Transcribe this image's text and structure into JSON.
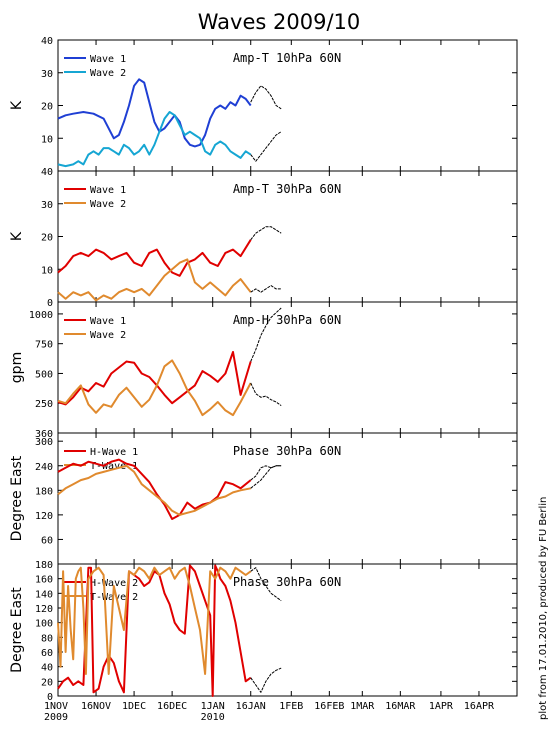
{
  "title": "Waves 2009/10",
  "credit": "plot from 17.01.2010, produced by FU Berlin",
  "colors": {
    "dark_blue": "#1f3fd4",
    "light_blue": "#16a6d3",
    "red": "#e00000",
    "orange": "#e08a2e",
    "forecast": "#000000"
  },
  "x_axis": {
    "ticks": [
      {
        "day": 0,
        "label": "1NOV",
        "sub": "2009"
      },
      {
        "day": 15,
        "label": "16NOV",
        "sub": ""
      },
      {
        "day": 30,
        "label": "1DEC",
        "sub": ""
      },
      {
        "day": 45,
        "label": "16DEC",
        "sub": ""
      },
      {
        "day": 61,
        "label": "1JAN",
        "sub": "2010"
      },
      {
        "day": 76,
        "label": "16JAN",
        "sub": ""
      },
      {
        "day": 92,
        "label": "1FEB",
        "sub": ""
      },
      {
        "day": 107,
        "label": "16FEB",
        "sub": ""
      },
      {
        "day": 120,
        "label": "1MAR",
        "sub": ""
      },
      {
        "day": 135,
        "label": "16MAR",
        "sub": ""
      },
      {
        "day": 151,
        "label": "1APR",
        "sub": ""
      },
      {
        "day": 166,
        "label": "16APR",
        "sub": ""
      }
    ],
    "range": [
      0,
      181
    ]
  },
  "chart_data": [
    {
      "type": "line",
      "title": "Amp-T 10hPa 60N",
      "ylabel": "K",
      "ylim": [
        0,
        40
      ],
      "yticks": [
        10,
        20,
        30,
        40
      ],
      "ytick_labels": [
        "10",
        "20",
        "30",
        "40"
      ],
      "bottom_label": "40",
      "legend": [
        {
          "name": "Wave 1",
          "color": "#1f3fd4"
        },
        {
          "name": "Wave 2",
          "color": "#16a6d3"
        }
      ],
      "series": [
        {
          "name": "Wave 1",
          "color": "#1f3fd4",
          "x": [
            0,
            3,
            6,
            10,
            14,
            18,
            20,
            22,
            24,
            26,
            28,
            30,
            32,
            34,
            36,
            38,
            40,
            42,
            44,
            46,
            48,
            50,
            52,
            54,
            56,
            58,
            60,
            62,
            64,
            66,
            68,
            70,
            72,
            74,
            76
          ],
          "values": [
            16,
            17,
            17.5,
            18,
            17.5,
            16,
            13,
            10,
            11,
            15,
            20,
            26,
            28,
            27,
            21,
            15,
            12,
            13,
            15,
            17,
            15,
            10,
            8,
            7.5,
            8,
            11,
            16,
            19,
            20,
            19,
            21,
            20,
            23,
            22,
            20
          ]
        },
        {
          "name": "Wave 2",
          "color": "#16a6d3",
          "x": [
            0,
            3,
            6,
            8,
            10,
            12,
            14,
            16,
            18,
            20,
            22,
            24,
            26,
            28,
            30,
            32,
            34,
            36,
            38,
            40,
            42,
            44,
            46,
            48,
            50,
            52,
            54,
            56,
            58,
            60,
            62,
            64,
            66,
            68,
            70,
            72,
            74,
            76
          ],
          "values": [
            2,
            1.5,
            2,
            3,
            2,
            5,
            6,
            5,
            7,
            7,
            6,
            5,
            8,
            7,
            5,
            6,
            8,
            5,
            8,
            12,
            16,
            18,
            17,
            14,
            11,
            12,
            11,
            10,
            6,
            5,
            8,
            9,
            8,
            6,
            5,
            4,
            6,
            5
          ]
        },
        {
          "name": "",
          "color": "#000000",
          "dash": true,
          "x": [
            76,
            78,
            80,
            82,
            84,
            86,
            88
          ],
          "values": [
            21,
            24,
            26,
            25,
            23,
            20,
            19
          ]
        },
        {
          "name": "",
          "color": "#000000",
          "dash": true,
          "x": [
            76,
            78,
            80,
            82,
            84,
            86,
            88
          ],
          "values": [
            5,
            3,
            5,
            7,
            9,
            11,
            12
          ]
        }
      ]
    },
    {
      "type": "line",
      "title": "Amp-T 30hPa 60N",
      "ylabel": "K",
      "ylim": [
        0,
        40
      ],
      "yticks": [
        0,
        10,
        20,
        30
      ],
      "ytick_labels": [
        "0",
        "10",
        "20",
        "30"
      ],
      "legend": [
        {
          "name": "Wave 1",
          "color": "#e00000"
        },
        {
          "name": "Wave 2",
          "color": "#e08a2e"
        }
      ],
      "series": [
        {
          "name": "Wave 1",
          "color": "#e00000",
          "x": [
            0,
            3,
            6,
            9,
            12,
            15,
            18,
            21,
            24,
            27,
            30,
            33,
            36,
            39,
            42,
            45,
            48,
            51,
            54,
            57,
            60,
            63,
            66,
            69,
            72,
            76
          ],
          "values": [
            9,
            11,
            14,
            15,
            14,
            16,
            15,
            13,
            14,
            15,
            12,
            11,
            15,
            16,
            12,
            9,
            8,
            12,
            13,
            15,
            12,
            11,
            15,
            16,
            14,
            19
          ]
        },
        {
          "name": "Wave 2",
          "color": "#e08a2e",
          "x": [
            0,
            3,
            6,
            9,
            12,
            15,
            18,
            21,
            24,
            27,
            30,
            33,
            36,
            39,
            42,
            45,
            48,
            51,
            54,
            57,
            60,
            63,
            66,
            69,
            72,
            76
          ],
          "values": [
            3,
            1,
            3,
            2,
            3,
            0.5,
            2,
            1,
            3,
            4,
            3,
            4,
            2,
            5,
            8,
            10,
            12,
            13,
            6,
            4,
            6,
            4,
            2,
            5,
            7,
            3
          ]
        },
        {
          "name": "",
          "color": "#000000",
          "dash": true,
          "x": [
            76,
            78,
            80,
            82,
            84,
            86,
            88
          ],
          "values": [
            19,
            21,
            22,
            23,
            23,
            22,
            21
          ]
        },
        {
          "name": "",
          "color": "#000000",
          "dash": true,
          "x": [
            76,
            78,
            80,
            82,
            84,
            86,
            88
          ],
          "values": [
            3,
            4,
            3,
            4,
            5,
            4,
            4
          ]
        }
      ]
    },
    {
      "type": "line",
      "title": "Amp-H 30hPa 60N",
      "ylabel": "gpm",
      "ylim": [
        0,
        1100
      ],
      "yticks": [
        250,
        500,
        750,
        1000
      ],
      "ytick_labels": [
        "250",
        "500",
        "750",
        "1000"
      ],
      "bottom_label": "360",
      "legend": [
        {
          "name": "Wave 1",
          "color": "#e00000"
        },
        {
          "name": "Wave 2",
          "color": "#e08a2e"
        }
      ],
      "series": [
        {
          "name": "Wave 1",
          "color": "#e00000",
          "x": [
            0,
            3,
            6,
            9,
            12,
            15,
            18,
            21,
            24,
            27,
            30,
            33,
            36,
            39,
            42,
            45,
            48,
            51,
            54,
            57,
            60,
            63,
            66,
            69,
            72,
            76
          ],
          "values": [
            260,
            240,
            300,
            380,
            350,
            420,
            390,
            500,
            550,
            600,
            590,
            500,
            470,
            400,
            320,
            250,
            300,
            350,
            400,
            520,
            480,
            430,
            500,
            680,
            320,
            600
          ]
        },
        {
          "name": "Wave 2",
          "color": "#e08a2e",
          "x": [
            0,
            3,
            6,
            9,
            12,
            15,
            18,
            21,
            24,
            27,
            30,
            33,
            36,
            39,
            42,
            45,
            48,
            51,
            54,
            57,
            60,
            63,
            66,
            69,
            72,
            76
          ],
          "values": [
            270,
            250,
            330,
            400,
            240,
            170,
            240,
            220,
            320,
            380,
            300,
            220,
            280,
            400,
            560,
            610,
            500,
            360,
            270,
            150,
            200,
            260,
            190,
            150,
            260,
            420
          ]
        },
        {
          "name": "",
          "color": "#000000",
          "dash": true,
          "x": [
            76,
            78,
            80,
            82,
            84,
            86,
            88
          ],
          "values": [
            600,
            700,
            820,
            900,
            970,
            1010,
            1050
          ]
        },
        {
          "name": "",
          "color": "#000000",
          "dash": true,
          "x": [
            76,
            78,
            80,
            82,
            84,
            86,
            88
          ],
          "values": [
            420,
            330,
            300,
            310,
            280,
            260,
            230
          ]
        }
      ]
    },
    {
      "type": "line",
      "title": "Phase 30hPa 60N",
      "ylabel": "Degree East",
      "ylim": [
        0,
        320
      ],
      "yticks": [
        60,
        120,
        180,
        240,
        300
      ],
      "ytick_labels": [
        "60",
        "120",
        "180",
        "240",
        "300"
      ],
      "legend": [
        {
          "name": "H-Wave 1",
          "color": "#e00000"
        },
        {
          "name": "T-Wave 1",
          "color": "#e08a2e"
        }
      ],
      "series": [
        {
          "name": "H-Wave 1",
          "color": "#e00000",
          "x": [
            0,
            3,
            6,
            9,
            12,
            15,
            18,
            21,
            24,
            27,
            30,
            33,
            36,
            39,
            42,
            45,
            48,
            51,
            54,
            57,
            60,
            63,
            66,
            69,
            72,
            76
          ],
          "values": [
            225,
            235,
            245,
            240,
            250,
            245,
            240,
            250,
            255,
            245,
            240,
            220,
            200,
            170,
            145,
            110,
            120,
            150,
            135,
            145,
            150,
            165,
            200,
            195,
            185,
            205
          ]
        },
        {
          "name": "T-Wave 1",
          "color": "#e08a2e",
          "x": [
            0,
            3,
            6,
            9,
            12,
            15,
            18,
            21,
            24,
            27,
            30,
            33,
            36,
            39,
            42,
            45,
            48,
            51,
            54,
            57,
            60,
            63,
            66,
            69,
            72,
            76
          ],
          "values": [
            170,
            185,
            195,
            205,
            210,
            220,
            225,
            230,
            235,
            240,
            225,
            195,
            180,
            165,
            150,
            130,
            120,
            125,
            130,
            140,
            150,
            160,
            165,
            175,
            180,
            185
          ]
        },
        {
          "name": "",
          "color": "#000000",
          "dash": true,
          "x": [
            76,
            78,
            80,
            82,
            84,
            86,
            88
          ],
          "values": [
            205,
            215,
            235,
            240,
            235,
            240,
            240
          ]
        },
        {
          "name": "",
          "color": "#000000",
          "dash": true,
          "x": [
            76,
            78,
            80,
            82,
            84,
            86,
            88
          ],
          "values": [
            185,
            195,
            205,
            220,
            235,
            240,
            240
          ]
        }
      ]
    },
    {
      "type": "line",
      "title": "Phase 30hPa 60N",
      "ylabel": "Degree East",
      "ylim": [
        0,
        180
      ],
      "yticks": [
        0,
        20,
        40,
        60,
        80,
        100,
        120,
        140,
        160,
        180
      ],
      "ytick_labels": [
        "0",
        "20",
        "40",
        "60",
        "80",
        "100",
        "120",
        "140",
        "160",
        "180"
      ],
      "legend": [
        {
          "name": "H-Wave 2",
          "color": "#e00000"
        },
        {
          "name": "T-Wave 2",
          "color": "#e08a2e"
        }
      ],
      "series": [
        {
          "name": "H-Wave 2",
          "color": "#e00000",
          "x": [
            0,
            2,
            4,
            6,
            8,
            10,
            12,
            13,
            14,
            16,
            18,
            20,
            21,
            22,
            24,
            26,
            28,
            30,
            32,
            34,
            36,
            38,
            40,
            42,
            44,
            46,
            48,
            50,
            52,
            54,
            56,
            58,
            60,
            61,
            62,
            63,
            64,
            66,
            68,
            70,
            72,
            74,
            76
          ],
          "values": [
            10,
            20,
            25,
            15,
            20,
            15,
            175,
            175,
            5,
            10,
            40,
            55,
            50,
            45,
            20,
            5,
            170,
            165,
            160,
            150,
            155,
            170,
            165,
            140,
            125,
            100,
            90,
            85,
            178,
            170,
            150,
            130,
            110,
            0,
            178,
            170,
            160,
            150,
            130,
            100,
            60,
            20,
            25
          ]
        },
        {
          "name": "T-Wave 2",
          "color": "#e08a2e",
          "x": [
            0,
            1,
            2,
            3,
            4,
            5,
            6,
            7,
            8,
            9,
            10,
            11,
            12,
            14,
            16,
            18,
            20,
            22,
            24,
            26,
            28,
            30,
            32,
            34,
            36,
            38,
            40,
            42,
            44,
            46,
            48,
            50,
            52,
            54,
            56,
            58,
            60,
            62,
            64,
            66,
            68,
            70,
            72,
            74,
            76
          ],
          "values": [
            100,
            40,
            170,
            60,
            150,
            90,
            50,
            160,
            170,
            175,
            120,
            30,
            160,
            170,
            175,
            165,
            30,
            150,
            120,
            90,
            170,
            165,
            175,
            170,
            160,
            175,
            165,
            170,
            175,
            160,
            170,
            175,
            150,
            120,
            90,
            30,
            170,
            160,
            175,
            170,
            160,
            175,
            170,
            165,
            170
          ]
        },
        {
          "name": "",
          "color": "#000000",
          "dash": true,
          "x": [
            76,
            78,
            80,
            82,
            84,
            86,
            88
          ],
          "values": [
            170,
            175,
            160,
            150,
            140,
            135,
            130
          ]
        },
        {
          "name": "",
          "color": "#000000",
          "dash": true,
          "x": [
            76,
            78,
            80,
            82,
            84,
            86,
            88
          ],
          "values": [
            25,
            15,
            5,
            20,
            30,
            35,
            38
          ]
        }
      ]
    }
  ]
}
